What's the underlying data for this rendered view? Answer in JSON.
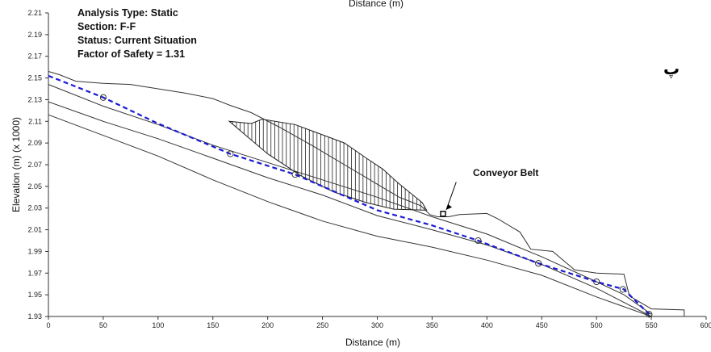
{
  "chart_data": {
    "type": "line",
    "xlabel": "Distance (m)",
    "top_label": "Distance (m)",
    "ylabel": "Elevation (m) (x 1000)",
    "xlim": [
      0,
      600
    ],
    "ylim": [
      1.93,
      2.21
    ],
    "x_ticks": [
      "0",
      "50",
      "100",
      "150",
      "200",
      "250",
      "300",
      "350",
      "400",
      "450",
      "500",
      "550",
      "600"
    ],
    "y_ticks": [
      "1.93",
      "1.95",
      "1.97",
      "1.99",
      "2.01",
      "2.03",
      "2.05",
      "2.07",
      "2.09",
      "2.11",
      "2.13",
      "2.15",
      "2.17",
      "2.19",
      "2.21"
    ],
    "info": {
      "line1": "Analysis Type: Static",
      "line2": "Section: F-F",
      "line3": "Status: Current Situation",
      "line4": "Factor of Safety = 1.31"
    },
    "annotation": "Conveyor Belt",
    "corner_mark": "پ",
    "colors": {
      "line": "#333333",
      "failure_surface": "#1a1ad6",
      "hatch": "#222222"
    },
    "series": [
      {
        "role": "ground-surface",
        "x": [
          0,
          10,
          25,
          50,
          75,
          100,
          125,
          150,
          165,
          185,
          210,
          240,
          270,
          300,
          320,
          340,
          348,
          355,
          365,
          375,
          400,
          410,
          430,
          440,
          460,
          480,
          500,
          525,
          530,
          550,
          580,
          580
        ],
        "y": [
          2.156,
          2.153,
          2.147,
          2.145,
          2.144,
          2.14,
          2.136,
          2.131,
          2.125,
          2.118,
          2.105,
          2.088,
          2.07,
          2.052,
          2.04,
          2.032,
          2.024,
          2.022,
          2.022,
          2.024,
          2.025,
          2.02,
          2.008,
          1.992,
          1.99,
          1.973,
          1.97,
          1.969,
          1.949,
          1.937,
          1.936,
          1.93
        ]
      },
      {
        "role": "layer-1",
        "x": [
          0,
          50,
          100,
          150,
          200,
          250,
          300,
          350,
          400,
          450,
          500,
          525,
          550
        ],
        "y": [
          2.144,
          2.124,
          2.107,
          2.088,
          2.072,
          2.056,
          2.04,
          2.022,
          2.006,
          1.985,
          1.962,
          1.95,
          1.932
        ]
      },
      {
        "role": "layer-2",
        "x": [
          0,
          50,
          100,
          150,
          200,
          250,
          300,
          350,
          400,
          450,
          500,
          550
        ],
        "y": [
          2.128,
          2.11,
          2.094,
          2.076,
          2.058,
          2.042,
          2.023,
          2.01,
          1.996,
          1.978,
          1.956,
          1.93
        ]
      },
      {
        "role": "layer-3",
        "x": [
          0,
          50,
          100,
          150,
          200,
          250,
          300,
          350,
          400,
          450,
          500,
          550
        ],
        "y": [
          2.116,
          2.097,
          2.078,
          2.056,
          2.036,
          2.018,
          2.004,
          1.994,
          1.982,
          1.968,
          1.948,
          1.93
        ]
      },
      {
        "role": "failure-surface",
        "x": [
          0,
          50,
          100,
          166,
          225,
          300,
          350,
          392,
          447,
          500,
          525,
          548
        ],
        "y": [
          2.152,
          2.132,
          2.108,
          2.08,
          2.061,
          2.028,
          2.014,
          2.0,
          1.979,
          1.962,
          1.955,
          1.932
        ]
      },
      {
        "role": "hatched-zone-top",
        "x": [
          165,
          185,
          195,
          225,
          270,
          290,
          305,
          318,
          330,
          341,
          345
        ],
        "y": [
          2.11,
          2.108,
          2.112,
          2.107,
          2.09,
          2.076,
          2.066,
          2.054,
          2.044,
          2.035,
          2.028
        ]
      },
      {
        "role": "hatched-zone-bottom",
        "x": [
          165,
          200,
          230,
          260,
          290,
          315,
          345
        ],
        "y": [
          2.11,
          2.08,
          2.06,
          2.045,
          2.035,
          2.029,
          2.028
        ]
      }
    ],
    "slice_markers": {
      "x": [
        50,
        166,
        225,
        392,
        447,
        500,
        524,
        548
      ],
      "y": [
        2.132,
        2.08,
        2.061,
        2.0,
        1.979,
        1.962,
        1.955,
        1.932
      ]
    },
    "conveyor_belt": {
      "x": 360,
      "y": 2.024
    }
  }
}
